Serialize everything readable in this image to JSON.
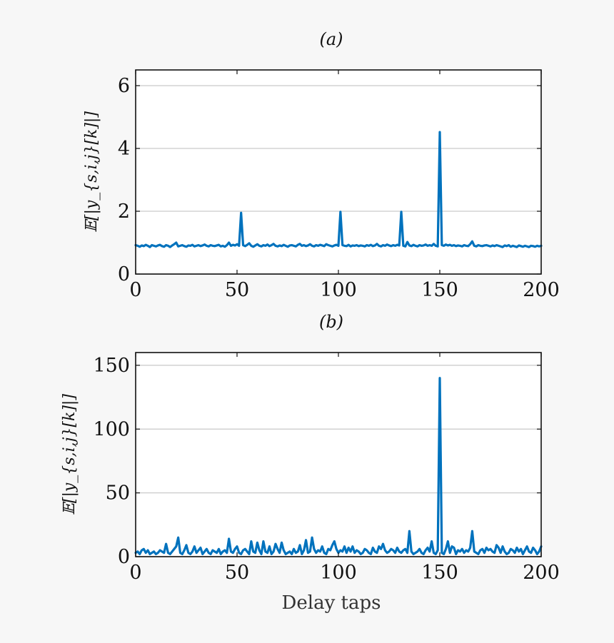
{
  "chart_data": [
    {
      "type": "line",
      "title": "(a)",
      "xlabel": "",
      "ylabel": "𝔼[|y_{s,i,j}[k]|]",
      "xlim": [
        0,
        200
      ],
      "ylim": [
        0,
        6.5
      ],
      "xticks": [
        0,
        50,
        100,
        150,
        200
      ],
      "yticks": [
        0,
        2,
        4,
        6
      ],
      "grid": "horizontal",
      "series": [
        {
          "color": "#0072bd",
          "x": [
            0,
            1,
            2,
            3,
            4,
            5,
            6,
            7,
            8,
            9,
            10,
            11,
            12,
            13,
            14,
            15,
            16,
            17,
            18,
            19,
            20,
            21,
            22,
            23,
            24,
            25,
            26,
            27,
            28,
            29,
            30,
            31,
            32,
            33,
            34,
            35,
            36,
            37,
            38,
            39,
            40,
            41,
            42,
            43,
            44,
            45,
            46,
            47,
            48,
            49,
            50,
            51,
            52,
            53,
            54,
            55,
            56,
            57,
            58,
            59,
            60,
            61,
            62,
            63,
            64,
            65,
            66,
            67,
            68,
            69,
            70,
            71,
            72,
            73,
            74,
            75,
            76,
            77,
            78,
            79,
            80,
            81,
            82,
            83,
            84,
            85,
            86,
            87,
            88,
            89,
            90,
            91,
            92,
            93,
            94,
            95,
            96,
            97,
            98,
            99,
            100,
            101,
            102,
            103,
            104,
            105,
            106,
            107,
            108,
            109,
            110,
            111,
            112,
            113,
            114,
            115,
            116,
            117,
            118,
            119,
            120,
            121,
            122,
            123,
            124,
            125,
            126,
            127,
            128,
            129,
            130,
            131,
            132,
            133,
            134,
            135,
            136,
            137,
            138,
            139,
            140,
            141,
            142,
            143,
            144,
            145,
            146,
            147,
            148,
            149,
            150,
            151,
            152,
            153,
            154,
            155,
            156,
            157,
            158,
            159,
            160,
            161,
            162,
            163,
            164,
            165,
            166,
            167,
            168,
            169,
            170,
            171,
            172,
            173,
            174,
            175,
            176,
            177,
            178,
            179,
            180,
            181,
            182,
            183,
            184,
            185,
            186,
            187,
            188,
            189,
            190,
            191,
            192,
            193,
            194,
            195,
            196,
            197,
            198,
            199,
            200
          ],
          "values": [
            0.92,
            0.9,
            0.87,
            0.91,
            0.89,
            0.93,
            0.9,
            0.86,
            0.92,
            0.9,
            0.88,
            0.91,
            0.93,
            0.89,
            0.87,
            0.92,
            0.9,
            0.86,
            0.91,
            0.95,
            1.0,
            0.88,
            0.9,
            0.92,
            0.89,
            0.87,
            0.91,
            0.9,
            0.93,
            0.88,
            0.9,
            0.92,
            0.89,
            0.91,
            0.94,
            0.9,
            0.88,
            0.92,
            0.9,
            0.89,
            0.91,
            0.93,
            0.88,
            0.9,
            0.87,
            0.92,
            1.0,
            0.9,
            0.93,
            0.91,
            0.95,
            0.9,
            1.95,
            0.92,
            0.89,
            0.93,
            0.98,
            0.9,
            0.87,
            0.91,
            0.95,
            0.9,
            0.88,
            0.92,
            0.9,
            0.94,
            0.89,
            0.92,
            0.96,
            0.9,
            0.88,
            0.91,
            0.89,
            0.93,
            0.9,
            0.87,
            0.91,
            0.92,
            0.9,
            0.88,
            0.93,
            0.96,
            0.9,
            0.92,
            0.89,
            0.91,
            0.95,
            0.9,
            0.88,
            0.92,
            0.9,
            0.93,
            0.91,
            0.89,
            0.95,
            0.92,
            0.9,
            0.88,
            0.91,
            0.93,
            0.9,
            1.98,
            0.92,
            0.9,
            0.89,
            0.93,
            0.88,
            0.91,
            0.9,
            0.92,
            0.89,
            0.91,
            0.9,
            0.88,
            0.92,
            0.9,
            0.93,
            0.89,
            0.91,
            0.96,
            0.9,
            0.88,
            0.92,
            0.9,
            0.94,
            0.91,
            0.89,
            0.92,
            0.9,
            0.93,
            0.91,
            1.98,
            0.9,
            0.88,
            1.02,
            0.91,
            0.89,
            0.93,
            0.9,
            0.88,
            0.92,
            0.9,
            0.91,
            0.94,
            0.9,
            0.92,
            0.9,
            0.96,
            0.9,
            0.88,
            4.52,
            0.92,
            0.9,
            0.94,
            0.91,
            0.93,
            0.9,
            0.92,
            0.89,
            0.91,
            0.9,
            0.88,
            0.92,
            0.9,
            0.89,
            0.95,
            1.04,
            0.9,
            0.88,
            0.92,
            0.9,
            0.89,
            0.91,
            0.92,
            0.9,
            0.88,
            0.91,
            0.89,
            0.92,
            0.9,
            0.88,
            0.86,
            0.91,
            0.89,
            0.92,
            0.87,
            0.9,
            0.88,
            0.86,
            0.91,
            0.89,
            0.87,
            0.9,
            0.88,
            0.86,
            0.9,
            0.89,
            0.87,
            0.9,
            0.88,
            0.9
          ]
        }
      ]
    },
    {
      "type": "line",
      "title": "(b)",
      "xlabel": "Delay taps",
      "ylabel": "𝔼[|y_{s,i,j}[k]|]",
      "xlim": [
        0,
        200
      ],
      "ylim": [
        0,
        160
      ],
      "xticks": [
        0,
        50,
        100,
        150,
        200
      ],
      "yticks": [
        0,
        50,
        100,
        150
      ],
      "grid": "horizontal",
      "series": [
        {
          "color": "#0072bd",
          "x": [
            0,
            1,
            2,
            3,
            4,
            5,
            6,
            7,
            8,
            9,
            10,
            11,
            12,
            13,
            14,
            15,
            16,
            17,
            18,
            19,
            20,
            21,
            22,
            23,
            24,
            25,
            26,
            27,
            28,
            29,
            30,
            31,
            32,
            33,
            34,
            35,
            36,
            37,
            38,
            39,
            40,
            41,
            42,
            43,
            44,
            45,
            46,
            47,
            48,
            49,
            50,
            51,
            52,
            53,
            54,
            55,
            56,
            57,
            58,
            59,
            60,
            61,
            62,
            63,
            64,
            65,
            66,
            67,
            68,
            69,
            70,
            71,
            72,
            73,
            74,
            75,
            76,
            77,
            78,
            79,
            80,
            81,
            82,
            83,
            84,
            85,
            86,
            87,
            88,
            89,
            90,
            91,
            92,
            93,
            94,
            95,
            96,
            97,
            98,
            99,
            100,
            101,
            102,
            103,
            104,
            105,
            106,
            107,
            108,
            109,
            110,
            111,
            112,
            113,
            114,
            115,
            116,
            117,
            118,
            119,
            120,
            121,
            122,
            123,
            124,
            125,
            126,
            127,
            128,
            129,
            130,
            131,
            132,
            133,
            134,
            135,
            136,
            137,
            138,
            139,
            140,
            141,
            142,
            143,
            144,
            145,
            146,
            147,
            148,
            149,
            150,
            151,
            152,
            153,
            154,
            155,
            156,
            157,
            158,
            159,
            160,
            161,
            162,
            163,
            164,
            165,
            166,
            167,
            168,
            169,
            170,
            171,
            172,
            173,
            174,
            175,
            176,
            177,
            178,
            179,
            180,
            181,
            182,
            183,
            184,
            185,
            186,
            187,
            188,
            189,
            190,
            191,
            192,
            193,
            194,
            195,
            196,
            197,
            198,
            199,
            200
          ],
          "values": [
            3,
            4,
            2,
            5,
            6,
            3,
            5,
            2,
            3,
            4,
            2,
            3,
            5,
            4,
            3,
            10,
            3,
            2,
            4,
            6,
            8,
            15,
            3,
            2,
            5,
            9,
            3,
            2,
            4,
            8,
            3,
            5,
            7,
            2,
            4,
            6,
            3,
            2,
            5,
            4,
            3,
            6,
            2,
            4,
            5,
            3,
            14,
            4,
            3,
            6,
            8,
            3,
            2,
            5,
            6,
            4,
            2,
            12,
            4,
            3,
            11,
            5,
            2,
            12,
            4,
            3,
            8,
            2,
            4,
            10,
            6,
            3,
            11,
            5,
            2,
            3,
            4,
            2,
            6,
            3,
            4,
            9,
            2,
            5,
            13,
            3,
            4,
            15,
            6,
            3,
            5,
            4,
            8,
            3,
            2,
            6,
            5,
            9,
            12,
            6,
            3,
            5,
            4,
            8,
            3,
            7,
            4,
            8,
            3,
            5,
            4,
            2,
            3,
            6,
            5,
            3,
            2,
            7,
            4,
            3,
            8,
            6,
            10,
            5,
            3,
            4,
            6,
            5,
            3,
            7,
            4,
            3,
            5,
            6,
            3,
            20,
            4,
            2,
            3,
            4,
            6,
            3,
            2,
            5,
            7,
            4,
            12,
            3,
            2,
            5,
            140,
            3,
            2,
            6,
            12,
            3,
            8,
            7,
            2,
            5,
            4,
            6,
            3,
            5,
            4,
            7,
            20,
            4,
            3,
            2,
            5,
            6,
            3,
            7,
            5,
            6,
            4,
            3,
            9,
            7,
            3,
            8,
            4,
            2,
            3,
            6,
            5,
            3,
            7,
            4,
            6,
            2,
            5,
            8,
            4,
            3,
            7,
            5,
            2,
            4,
            8
          ]
        }
      ]
    }
  ]
}
